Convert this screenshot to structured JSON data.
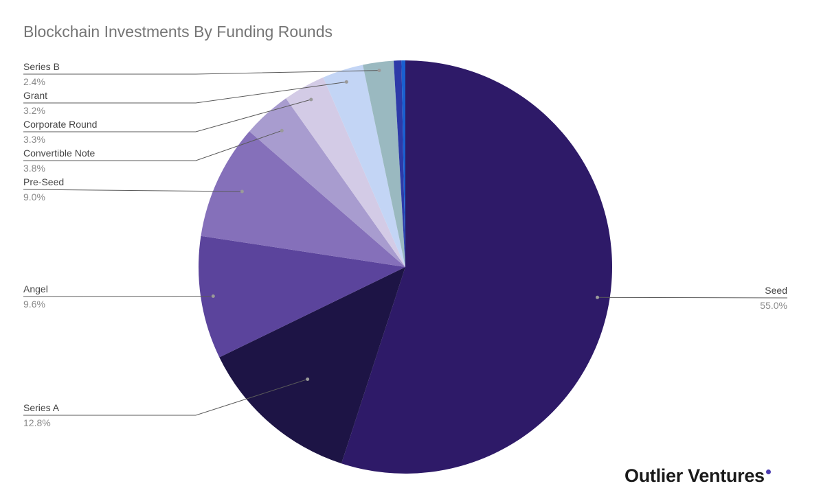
{
  "chart_data": {
    "type": "pie",
    "title": "Blockchain Investments By Funding Rounds",
    "slices": [
      {
        "label": "Seed",
        "value": 55.0,
        "value_label": "55.0%",
        "color": "#2e1a68"
      },
      {
        "label": "Series A",
        "value": 12.8,
        "value_label": "12.8%",
        "color": "#1d1445"
      },
      {
        "label": "Angel",
        "value": 9.6,
        "value_label": "9.6%",
        "color": "#5b449c"
      },
      {
        "label": "Pre-Seed",
        "value": 9.0,
        "value_label": "9.0%",
        "color": "#8570ba"
      },
      {
        "label": "Convertible Note",
        "value": 3.8,
        "value_label": "3.8%",
        "color": "#a89ccf"
      },
      {
        "label": "Corporate Round",
        "value": 3.3,
        "value_label": "3.3%",
        "color": "#d3cbe6"
      },
      {
        "label": "Grant",
        "value": 3.2,
        "value_label": "3.2%",
        "color": "#c3d5f5"
      },
      {
        "label": "Series B",
        "value": 2.4,
        "value_label": "2.4%",
        "color": "#9ab9c0"
      },
      {
        "label": "",
        "value": 0.6,
        "value_label": "",
        "color": "#2d3aa8"
      },
      {
        "label": "",
        "value": 0.3,
        "value_label": "",
        "color": "#1a5fd0"
      }
    ],
    "legend": "none",
    "data_labels": "outside with leader lines"
  },
  "brand": {
    "name": "Outlier Ventures",
    "dot_color": "#4b3bb0"
  }
}
